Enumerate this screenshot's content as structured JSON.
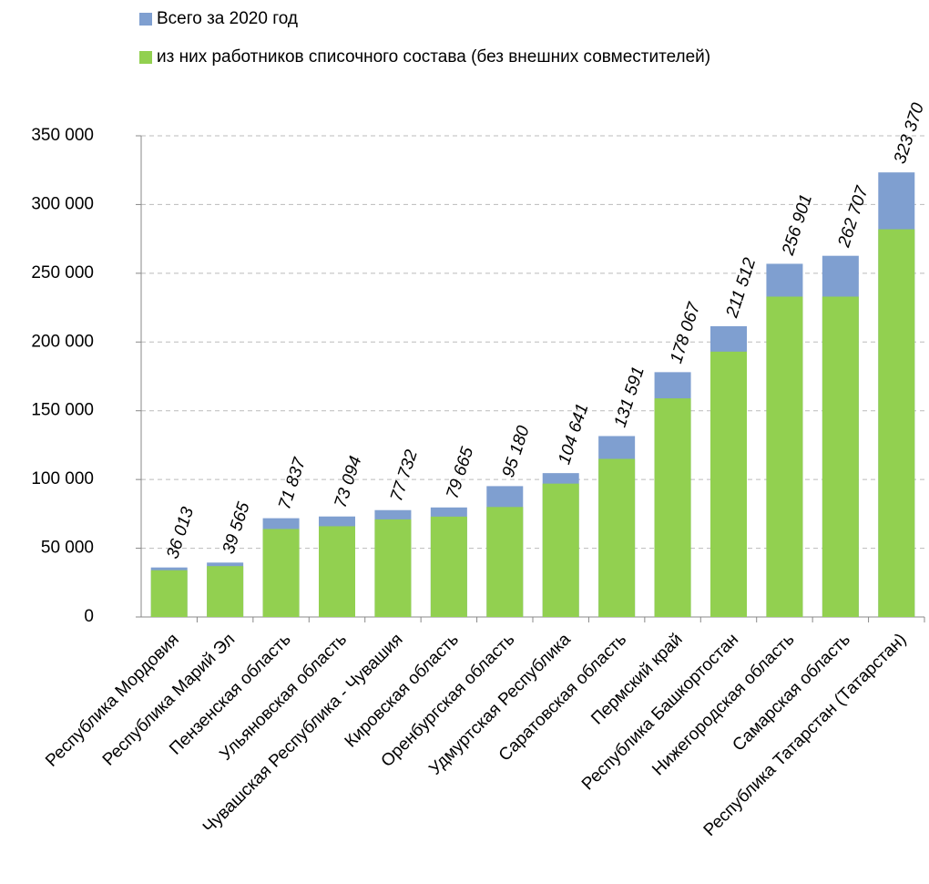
{
  "chart_data": {
    "type": "bar",
    "categories": [
      "Республика Мордовия",
      "Республика Марий Эл",
      "Пензенская область",
      "Ульяновская область",
      "Чувашская Республика  - Чувашия",
      "Кировская область",
      "Оренбургская область",
      "Удмуртская Республика",
      "Саратовская область",
      "Пермский край",
      "Республика Башкортостан",
      "Нижегородская область",
      "Самарская область",
      "Республика Татарстан (Татарстан)"
    ],
    "series": [
      {
        "name": "Всего за 2020 год",
        "color": "#7f9fd0",
        "values": [
          36013,
          39565,
          71837,
          73094,
          77732,
          79665,
          95180,
          104641,
          131591,
          178067,
          211512,
          256901,
          262707,
          323370
        ],
        "value_labels": [
          "36 013",
          "39 565",
          "71 837",
          "73 094",
          "77 732",
          "79 665",
          "95 180",
          "104 641",
          "131 591",
          "178 067",
          "211 512",
          "256 901",
          "262 707",
          "323 370"
        ]
      },
      {
        "name": "из них работников списочного состава (без внешних совместителей)",
        "color": "#92d050",
        "values": [
          34000,
          37000,
          64000,
          66000,
          71000,
          73000,
          80000,
          97000,
          115000,
          159000,
          193000,
          233000,
          233000,
          282000
        ]
      }
    ],
    "ylim": [
      0,
      350000
    ],
    "yticks": [
      {
        "value": 0,
        "label": "0"
      },
      {
        "value": 50000,
        "label": "50 000"
      },
      {
        "value": 100000,
        "label": "100 000"
      },
      {
        "value": 150000,
        "label": "150 000"
      },
      {
        "value": 200000,
        "label": "200 000"
      },
      {
        "value": 250000,
        "label": "250 000"
      },
      {
        "value": 300000,
        "label": "300 000"
      },
      {
        "value": 350000,
        "label": "350 000"
      }
    ],
    "grid": true
  }
}
